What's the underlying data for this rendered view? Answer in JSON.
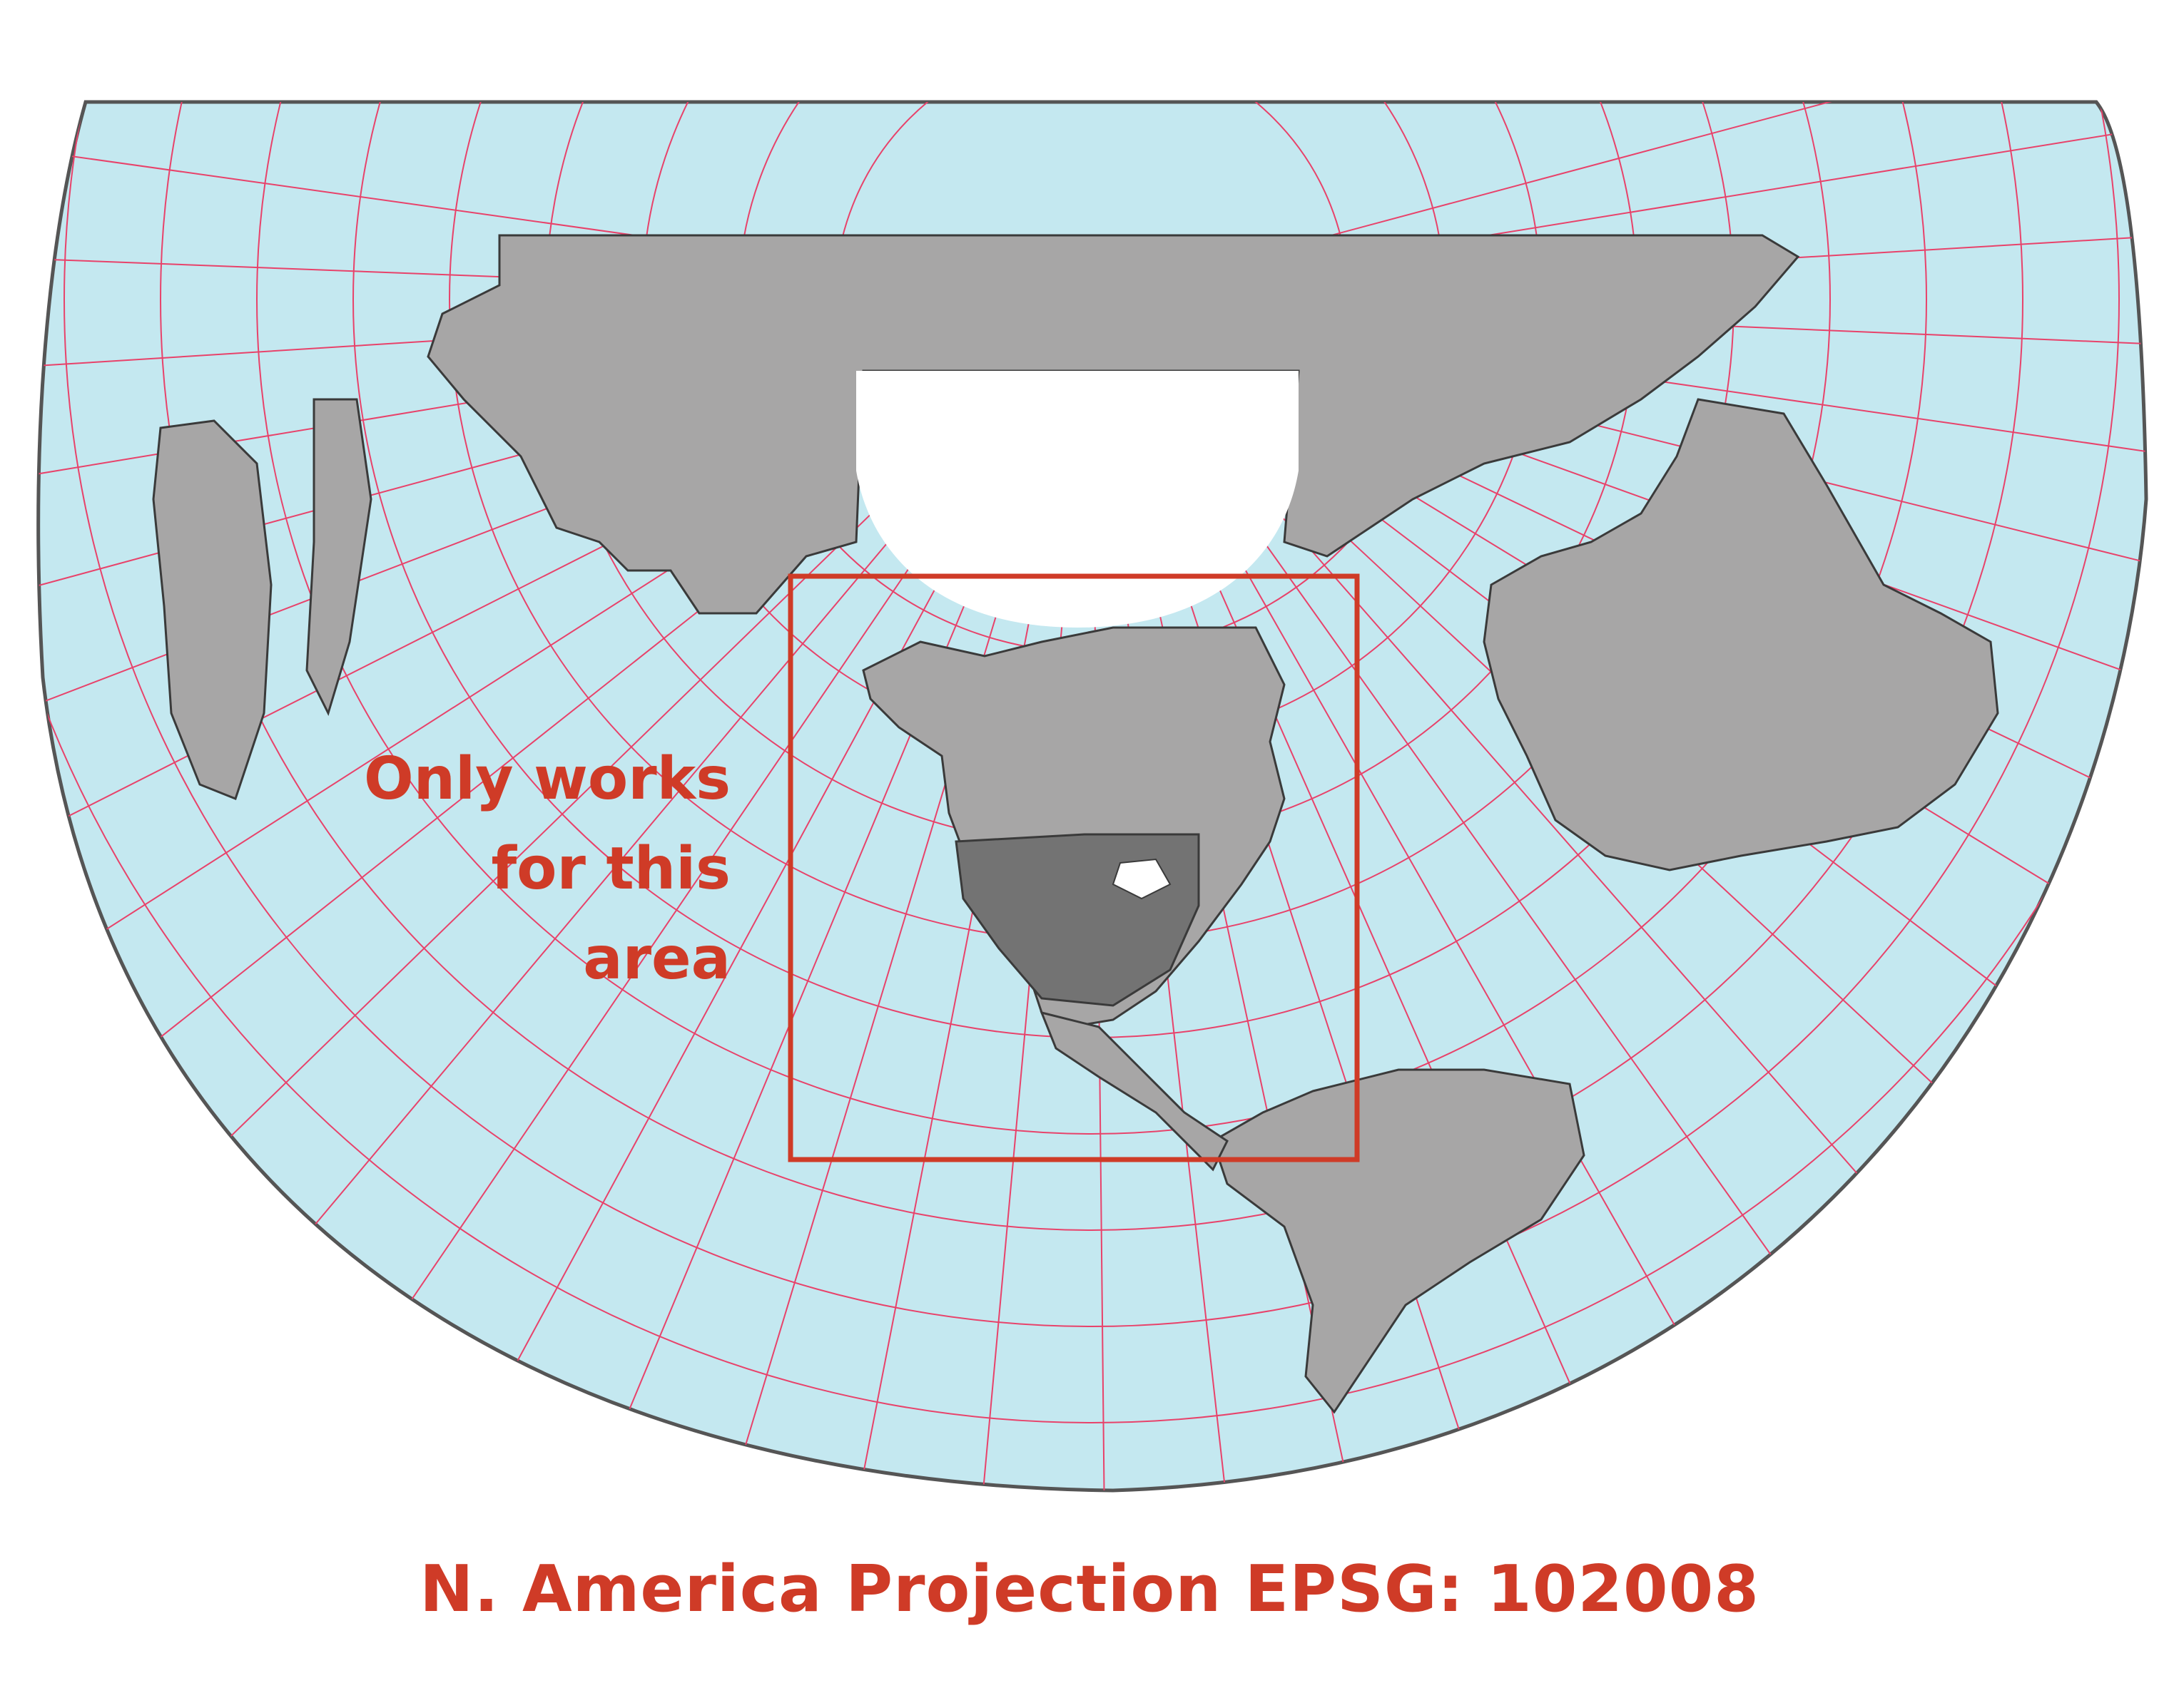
{
  "map": {
    "annotation_lines": [
      "Only works",
      "for this",
      "area"
    ],
    "caption": "N. America Projection EPSG: 102008",
    "projection": "Albers equal-area conic (North America)",
    "colors": {
      "ocean": "#c4e8f0",
      "land": "#a7a6a6",
      "usa": "#737373",
      "lakes": "#ffffff",
      "graticule": "#e8426a",
      "border": "#3a3a3a",
      "accent": "#cf3b27"
    },
    "highlight_region": "North America (valid area of projection)"
  }
}
